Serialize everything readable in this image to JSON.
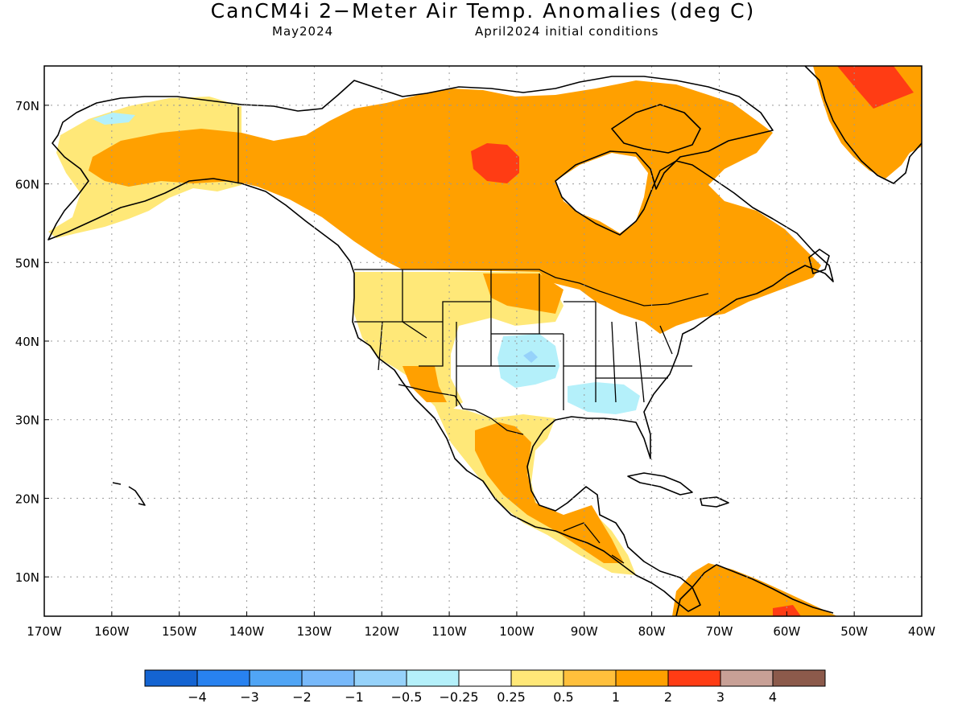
{
  "header": {
    "title": "CanCM4i 2−Meter Air Temp. Anomalies (deg C)",
    "month": "May2024",
    "initial_conditions": "April2024 initial conditions"
  },
  "axes": {
    "lat_labels": [
      "70N",
      "60N",
      "50N",
      "40N",
      "30N",
      "20N",
      "10N"
    ],
    "lat_values": [
      70,
      60,
      50,
      40,
      30,
      20,
      10
    ],
    "lon_labels": [
      "170W",
      "160W",
      "150W",
      "140W",
      "130W",
      "120W",
      "110W",
      "100W",
      "90W",
      "80W",
      "70W",
      "60W",
      "50W",
      "40W"
    ],
    "lon_values": [
      -170,
      -160,
      -150,
      -140,
      -130,
      -120,
      -110,
      -100,
      -90,
      -80,
      -70,
      -60,
      -50,
      -40
    ],
    "lon_range": [
      -170,
      -40
    ],
    "lat_range": [
      5,
      75
    ],
    "grid": "dotted"
  },
  "legend": {
    "colors": [
      "#1464d2",
      "#2882f0",
      "#50a5f5",
      "#78b9fa",
      "#96d2fa",
      "#b4f0fa",
      "#ffffff",
      "#ffe878",
      "#ffc03c",
      "#ffa000",
      "#ff3c14",
      "#c8a096",
      "#8c5a4b"
    ],
    "labels": [
      "−4",
      "−3",
      "−2",
      "−1",
      "−0.5",
      "−0.25",
      "0.25",
      "0.5",
      "1",
      "2",
      "3",
      "4"
    ]
  },
  "map_data": {
    "variable": "2-meter air temperature anomaly",
    "units": "deg C",
    "regions": [
      {
        "name": "Alaska and Yukon",
        "class": "0.5 to 1",
        "note": "light to moderate warm"
      },
      {
        "name": "Western and central Canada",
        "class": "1 to 2",
        "note": "widespread warm"
      },
      {
        "name": "Central Nunavut near Chesterfield Inlet",
        "class": "2 to 3",
        "note": "strongest warm core"
      },
      {
        "name": "Quebec and Labrador",
        "class": "1 to 2",
        "note": "warm"
      },
      {
        "name": "Greenland",
        "class": "1 to 3",
        "note": "warm, peak in north"
      },
      {
        "name": "US Northwest and Great Basin",
        "class": "0.5 to 1",
        "note": "warm"
      },
      {
        "name": "US Central Plains (Kansas/Oklahoma)",
        "class": "-0.5 to -0.25",
        "note": "slightly cool"
      },
      {
        "name": "US Deep South (Alabama/Mississippi)",
        "class": "-0.5 to -0.25",
        "note": "slightly cool"
      },
      {
        "name": "Mexico and Central America",
        "class": "0.5 to 2",
        "note": "warm"
      },
      {
        "name": "Northern South America",
        "class": "1 to 3",
        "note": "warm"
      }
    ]
  }
}
